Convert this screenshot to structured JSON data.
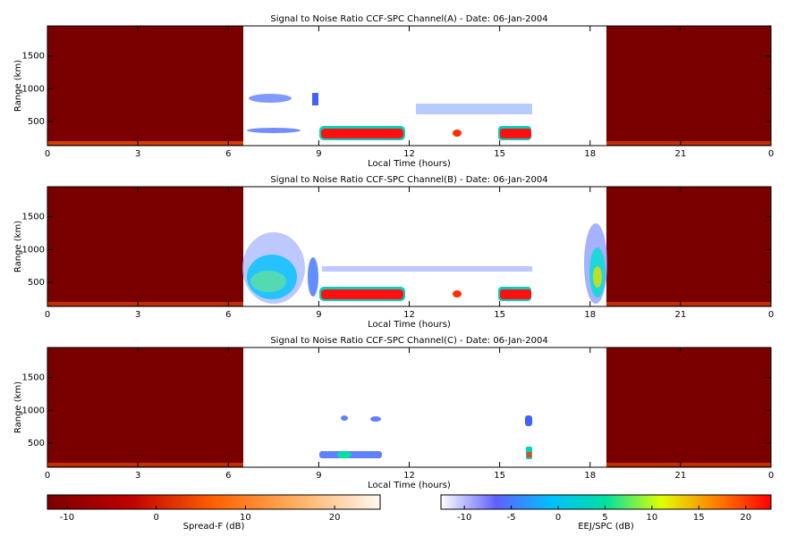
{
  "chart_data": [
    {
      "type": "heatmap",
      "title": "Signal to Noise Ratio CCF-SPC Channel(A) - Date: 06-Jan-2004",
      "xlabel": "Local Time (hours)",
      "ylabel": "Range (km)",
      "xlim": [
        0,
        24
      ],
      "xticks": [
        0,
        3,
        6,
        9,
        12,
        15,
        18,
        21,
        {
          "value": 24,
          "label": "0"
        }
      ],
      "ylim": [
        130,
        1960
      ],
      "yticks": [
        500,
        1000,
        1500
      ]
    },
    {
      "type": "heatmap",
      "title": "Signal to Noise Ratio CCF-SPC Channel(B) - Date: 06-Jan-2004",
      "xlabel": "Local Time (hours)",
      "ylabel": "Range (km)",
      "xlim": [
        0,
        24
      ],
      "xticks": [
        0,
        3,
        6,
        9,
        12,
        15,
        18,
        21,
        {
          "value": 24,
          "label": "0"
        }
      ],
      "ylim": [
        130,
        1960
      ],
      "yticks": [
        500,
        1000,
        1500
      ]
    },
    {
      "type": "heatmap",
      "title": "Signal to Noise Ratio CCF-SPC Channel(C) - Date: 06-Jan-2004",
      "xlabel": "Local Time (hours)",
      "ylabel": "Range (km)",
      "xlim": [
        0,
        24
      ],
      "xticks": [
        0,
        3,
        6,
        9,
        12,
        15,
        18,
        21,
        {
          "value": 24,
          "label": "0"
        }
      ],
      "ylim": [
        130,
        1960
      ],
      "yticks": [
        500,
        1000,
        1500
      ]
    }
  ],
  "colorbars": [
    {
      "label": "Spread-F (dB)",
      "lim": [
        -12.2,
        25.1
      ],
      "ticks": [
        -10,
        0,
        10,
        20
      ],
      "colors": [
        "#7a0000",
        "#c00000",
        "#ff6000",
        "#ffb060",
        "#fff8f0"
      ]
    },
    {
      "label": "EEJ/SPC (dB)",
      "lim": [
        -12.5,
        22.7
      ],
      "ticks": [
        -10,
        -5,
        0,
        5,
        10,
        15,
        20
      ],
      "colors": [
        "#ffffff",
        "#6060ff",
        "#00c0ff",
        "#00e0a0",
        "#e0ff00",
        "#ff8000",
        "#ff0000"
      ]
    }
  ]
}
